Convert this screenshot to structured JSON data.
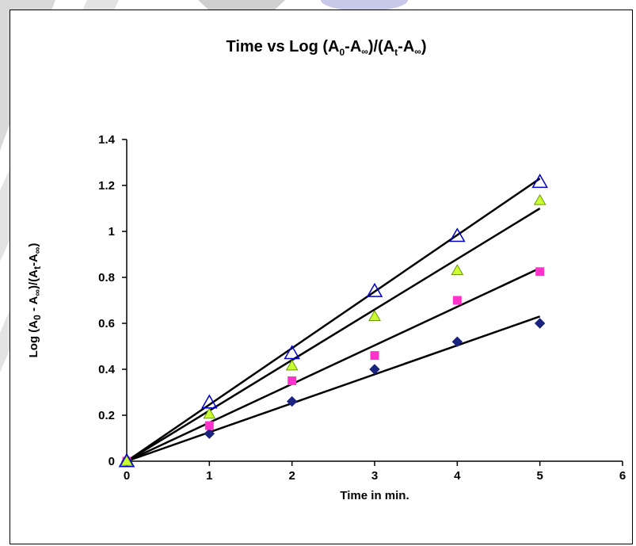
{
  "chart_data": {
    "type": "scatter",
    "title": {
      "main": "Time vs Log (A",
      "sub0": "0",
      "mid1": "-A",
      "inf1": "∞",
      "mid2": ")/(A",
      "subt": "t",
      "mid3": "-A",
      "inf2": "∞",
      "end": ")"
    },
    "xlabel": "Time in min.",
    "ylabel": {
      "p1": "Log (A",
      "sub0": "0",
      "p2": " - A",
      "inf1": "∞",
      "p3": ")/(A",
      "subt": "t",
      "p4": "-A",
      "inf2": "∞",
      "p5": ")"
    },
    "xlim": [
      0,
      6
    ],
    "ylim": [
      0,
      1.4
    ],
    "xticks": [
      "0",
      "1",
      "2",
      "3",
      "4",
      "5",
      "6"
    ],
    "yticks": [
      "0",
      "0.2",
      "0.4",
      "0.6",
      "0.8",
      "1",
      "1.2",
      "1.4"
    ],
    "grid": false,
    "legend": "none",
    "series": [
      {
        "marker": "diamond",
        "color": "#1a237e",
        "x": [
          0,
          1,
          2,
          3,
          4,
          5
        ],
        "y": [
          0,
          0.12,
          0.26,
          0.4,
          0.52,
          0.6
        ],
        "fit": [
          [
            0,
            0
          ],
          [
            5,
            0.63
          ]
        ]
      },
      {
        "marker": "square",
        "color": "#ff33cc",
        "x": [
          0,
          1,
          2,
          3,
          4,
          5
        ],
        "y": [
          0,
          0.155,
          0.35,
          0.46,
          0.7,
          0.825
        ],
        "fit": [
          [
            0,
            0
          ],
          [
            5,
            0.84
          ]
        ]
      },
      {
        "marker": "triangle-filled",
        "color": "#ccff33",
        "stroke": "#669900",
        "x": [
          0,
          1,
          2,
          3,
          4,
          5
        ],
        "y": [
          0,
          0.205,
          0.415,
          0.63,
          0.83,
          1.135
        ],
        "fit": [
          [
            0,
            0
          ],
          [
            5,
            1.1
          ]
        ]
      },
      {
        "marker": "triangle-open",
        "color": "#0000cc",
        "x": [
          0,
          1,
          2,
          3,
          4,
          5
        ],
        "y": [
          0,
          0.255,
          0.47,
          0.74,
          0.98,
          1.215
        ],
        "fit": [
          [
            0,
            0
          ],
          [
            5,
            1.23
          ]
        ]
      }
    ]
  }
}
